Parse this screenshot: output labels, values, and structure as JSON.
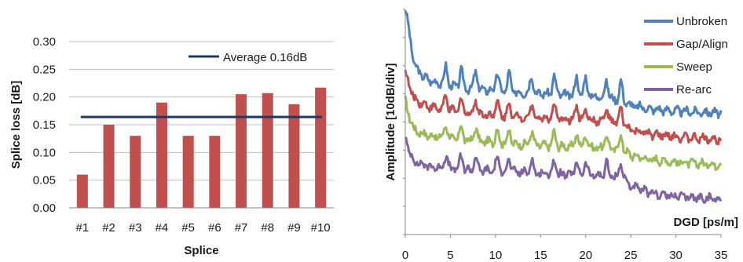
{
  "chart_data": [
    {
      "type": "bar",
      "categories": [
        "#1",
        "#2",
        "#3",
        "#4",
        "#5",
        "#6",
        "#7",
        "#8",
        "#9",
        "#10"
      ],
      "series": [
        {
          "values": [
            0.06,
            0.15,
            0.13,
            0.19,
            0.13,
            0.13,
            0.205,
            0.207,
            0.187,
            0.217
          ],
          "color": "#c0504d"
        }
      ],
      "reference_line": {
        "name": "Average 0.16dB",
        "value": 0.164,
        "color": "#1f3864"
      },
      "xlabel": "Splice",
      "ylabel": "Splice loss [dB]",
      "ylim": [
        0,
        0.3
      ],
      "yticks": [
        "0.00",
        "0.05",
        "0.10",
        "0.15",
        "0.20",
        "0.25",
        "0.30"
      ],
      "grid": true,
      "legend_position": "top-right"
    },
    {
      "type": "line",
      "xlabel": "DGD [ps/m]",
      "ylabel": "Amplitude [10dB/div]",
      "xlim": [
        0,
        35
      ],
      "xticks": [
        "0",
        "5",
        "10",
        "15",
        "20",
        "25",
        "30",
        "35"
      ],
      "grid": false,
      "legend_position": "top-right",
      "peaks": [
        4.5,
        6.2,
        7.8,
        10.2,
        11.5,
        14.0,
        16.5,
        19.0,
        20.0,
        22.3,
        23.9
      ],
      "series": [
        {
          "name": "Unbroken",
          "color": "#4f81bd",
          "x": [
            0,
            0.3,
            1,
            2,
            3,
            5,
            7,
            9,
            12,
            15,
            18,
            21,
            24,
            25,
            27,
            30,
            35
          ],
          "y": [
            28,
            26,
            20,
            18.4,
            17.7,
            17.1,
            16.7,
            16.5,
            16.2,
            16.0,
            15.8,
            15.6,
            15.0,
            14.3,
            13.8,
            13.5,
            13.2
          ]
        },
        {
          "name": "Gap/Align",
          "color": "#c0504d",
          "x": [
            0,
            0.5,
            1,
            2,
            3,
            5,
            7,
            9,
            12,
            15,
            18,
            21,
            24,
            25,
            27,
            30,
            35
          ],
          "y": [
            19,
            17,
            15.2,
            14.5,
            14.0,
            13.6,
            13.2,
            13.0,
            12.7,
            12.5,
            12.3,
            12.1,
            11.8,
            10.8,
            10.2,
            9.8,
            9.4
          ]
        },
        {
          "name": "Sweep",
          "color": "#9bbb59",
          "x": [
            0,
            0.5,
            1,
            2,
            3,
            5,
            7,
            9,
            12,
            15,
            18,
            21,
            24,
            25,
            27,
            30,
            35
          ],
          "y": [
            15,
            12.5,
            10.8,
            10.2,
            9.9,
            9.6,
            9.3,
            9.1,
            8.8,
            8.6,
            8.4,
            8.3,
            8.0,
            7.2,
            6.6,
            6.2,
            5.8
          ]
        },
        {
          "name": "Re-arc",
          "color": "#8064a2",
          "x": [
            0,
            0.5,
            1,
            2,
            3,
            5,
            7,
            9,
            12,
            15,
            18,
            21,
            24,
            25,
            27,
            30,
            35
          ],
          "y": [
            10,
            7.5,
            6.3,
            5.8,
            5.5,
            5.3,
            5.1,
            5.0,
            4.8,
            4.6,
            4.4,
            4.3,
            4.1,
            2.8,
            1.8,
            1.3,
            0.9
          ]
        }
      ]
    }
  ]
}
